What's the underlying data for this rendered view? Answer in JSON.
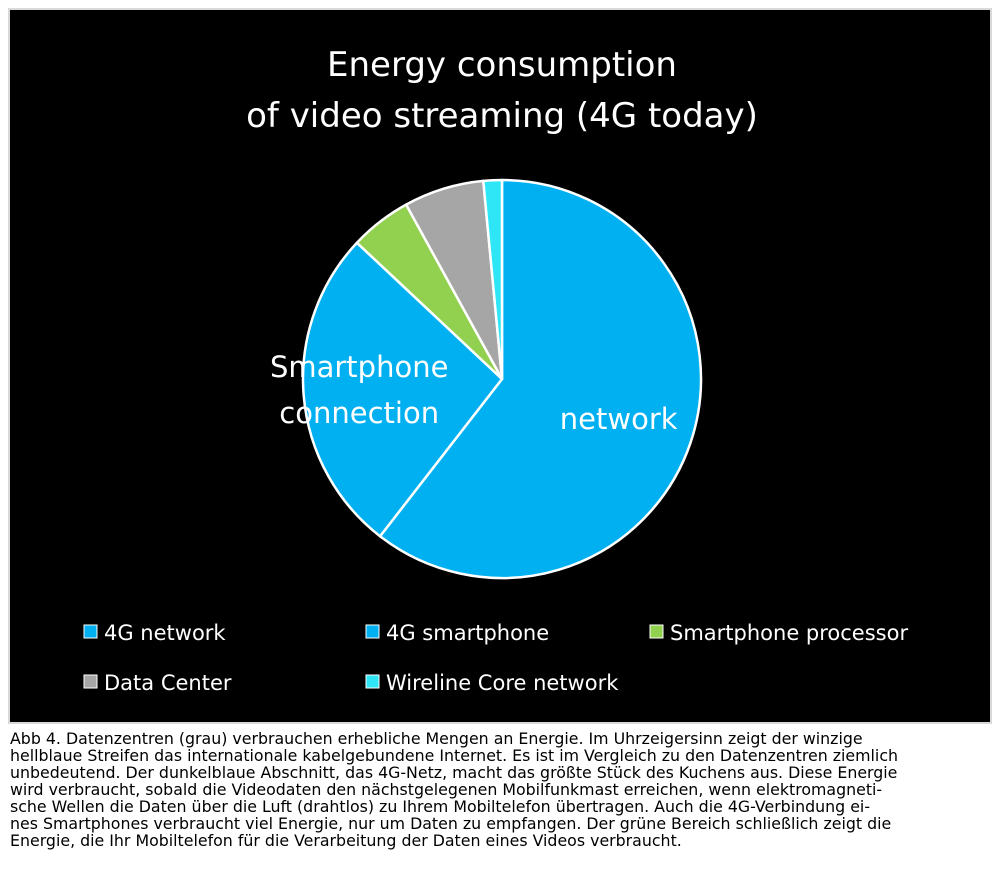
{
  "chart_data": {
    "type": "pie",
    "title": [
      "Energy consumption",
      "of video streaming (4G today)"
    ],
    "slice_labels": [
      {
        "series": "4G network",
        "text": [
          "network"
        ]
      },
      {
        "series": "4G smartphone",
        "text": [
          "Smartphone",
          "connection"
        ]
      }
    ],
    "series": [
      {
        "name": "4G network",
        "value": 60.5,
        "color": "#00b0f0"
      },
      {
        "name": "4G smartphone",
        "value": 26.5,
        "color": "#00b0f0"
      },
      {
        "name": "Smartphone processor",
        "value": 5.0,
        "color": "#92d050"
      },
      {
        "name": "Data Center",
        "value": 6.5,
        "color": "#a6a6a6"
      },
      {
        "name": "Wireline Core network",
        "value": 1.5,
        "color": "#2ee6f5"
      }
    ],
    "start_angle_deg": 0,
    "direction": "clockwise",
    "slice_border_color": "#ffffff",
    "legend": {
      "placement": "bottom",
      "rows": [
        [
          "4G network",
          "4G smartphone",
          "Smartphone processor"
        ],
        [
          "Data Center",
          "Wireline Core network"
        ]
      ]
    }
  },
  "caption": {
    "lines": [
      "Abb 4. Datenzentren (grau) verbrauchen erhebliche Mengen an Energie. Im Uhrzeigersinn zeigt der winzige",
      "hellblaue Streifen das internationale kabelgebundene Internet. Es ist im Vergleich zu den Datenzentren ziemlich",
      "unbedeutend. Der dunkelblaue Abschnitt, das 4G-Netz, macht das größte Stück des Kuchens aus. Diese Energie",
      "wird verbraucht, sobald die Videodaten den nächstgelegenen Mobilfunkmast erreichen, wenn elektromagneti-",
      "sche Wellen die Daten über die Luft (drahtlos) zu Ihrem Mobiltelefon übertragen. Auch die 4G-Verbindung ei-",
      "nes Smartphones verbraucht viel Energie, nur um Daten zu empfangen. Der grüne Bereich schließlich zeigt die",
      "Energie, die Ihr Mobiltelefon für die Verarbeitung der Daten eines Videos verbraucht."
    ]
  }
}
